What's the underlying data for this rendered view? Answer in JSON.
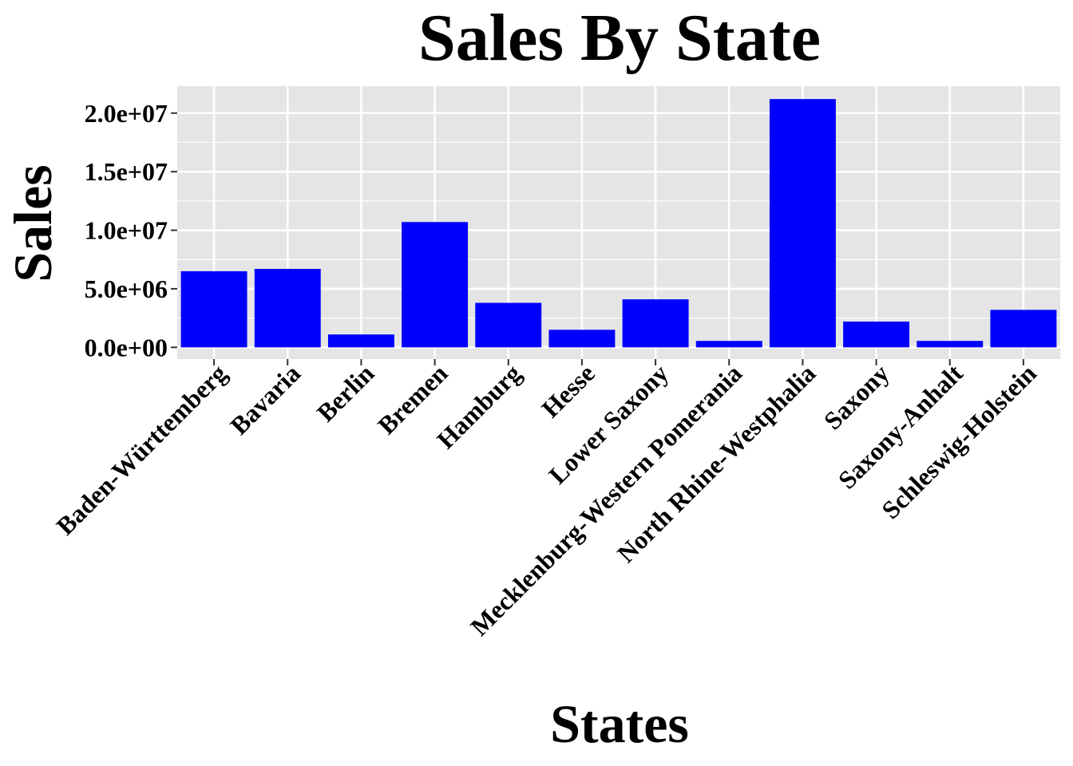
{
  "chart_data": {
    "type": "bar",
    "title": "Sales By State",
    "xlabel": "States",
    "ylabel": "Sales",
    "categories": [
      "Baden-Württemberg",
      "Bavaria",
      "Berlin",
      "Bremen",
      "Hamburg",
      "Hesse",
      "Lower Saxony",
      "Mecklenburg-Western Pomerania",
      "North Rhine-Westphalia",
      "Saxony",
      "Saxony-Anhalt",
      "Schleswig-Holstein"
    ],
    "values": [
      6500000,
      6700000,
      1100000,
      10700000,
      3800000,
      1500000,
      4100000,
      550000,
      21200000,
      2200000,
      550000,
      3200000
    ],
    "y_ticks": [
      "0.0e+00",
      "5.0e+06",
      "1.0e+07",
      "1.5e+07",
      "2.0e+07"
    ],
    "y_tick_values": [
      0,
      5000000,
      10000000,
      15000000,
      20000000
    ],
    "ylim": [
      -1000000,
      22300000
    ],
    "bar_color": "#0000FF",
    "panel_color": "#E5E5E5",
    "grid": true,
    "legend": "none"
  }
}
